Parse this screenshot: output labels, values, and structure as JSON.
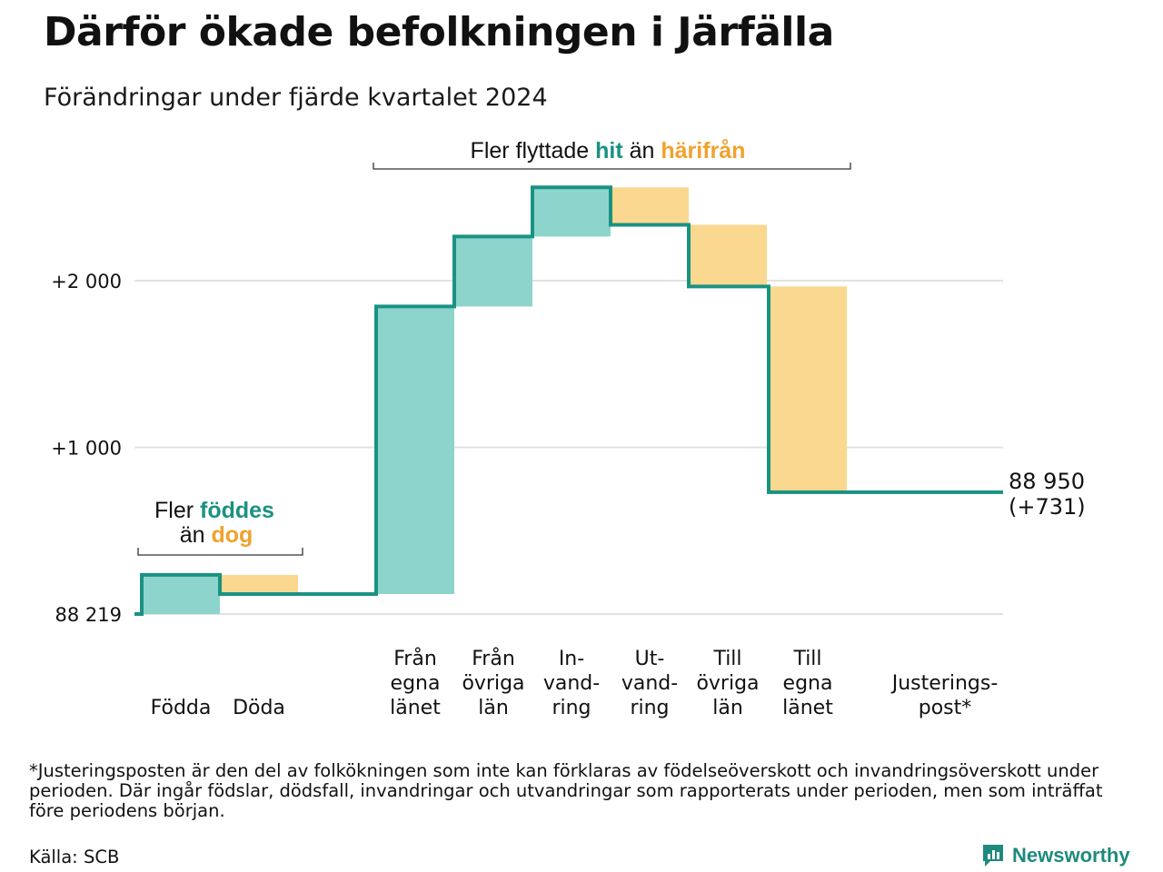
{
  "title": "Därför ökade befolkningen i Järfälla",
  "subtitle": "Förändringar under fjärde kvartalet 2024",
  "chart_data": {
    "type": "waterfall",
    "baseline_value": 88219,
    "baseline_label": "88 219",
    "y_ticks": [
      {
        "value": 2000,
        "label": "+2 000"
      },
      {
        "value": 1000,
        "label": "+1 000"
      }
    ],
    "grid": true,
    "steps": [
      {
        "label": [
          "Födda"
        ],
        "change": 235,
        "kind": "increase"
      },
      {
        "label": [
          "Döda"
        ],
        "change": -115,
        "kind": "decrease"
      },
      {
        "label": [
          "Från",
          "egna",
          "länet"
        ],
        "change": 1725,
        "kind": "increase"
      },
      {
        "label": [
          "Från",
          "övriga",
          "län"
        ],
        "change": 420,
        "kind": "increase"
      },
      {
        "label": [
          "In-",
          "vand-",
          "ring"
        ],
        "change": 295,
        "kind": "increase"
      },
      {
        "label": [
          "Ut-",
          "vand-",
          "ring"
        ],
        "change": -225,
        "kind": "decrease"
      },
      {
        "label": [
          "Till",
          "övriga",
          "län"
        ],
        "change": -370,
        "kind": "decrease"
      },
      {
        "label": [
          "Till",
          "egna",
          "länet"
        ],
        "change": -1234,
        "kind": "decrease"
      },
      {
        "label": [
          "Justerings-",
          "post*"
        ],
        "change": 0,
        "kind": "adjustment"
      }
    ],
    "end_value_label": "88 950",
    "end_change_label": "(+731)",
    "annotations": {
      "births": {
        "prefix": "Fler",
        "strong1": "föddes",
        "middle": "än",
        "strong2": "dog"
      },
      "migration": {
        "prefix": "Fler flyttade",
        "strong1": "hit",
        "middle": "än",
        "strong2": "härifrån"
      }
    },
    "colors": {
      "increase": "#8dd5cc",
      "decrease": "#fbd88f",
      "line": "#1a9283",
      "grid": "#e2e2e2",
      "highlight_in": "#1a9283",
      "highlight_out": "#f0a22e"
    }
  },
  "footnote": "*Justeringsposten är den del av folkökningen som inte kan förklaras av födelseöverskott och invandringsöverskott under perioden. Där ingår födslar, dödsfall, invandringar och utvandringar som rapporterats under perioden, men som inträffat före periodens början.",
  "source": "Källa: SCB",
  "brand": {
    "name": "Newsworthy",
    "icon": "newsworthy-logo-icon"
  }
}
